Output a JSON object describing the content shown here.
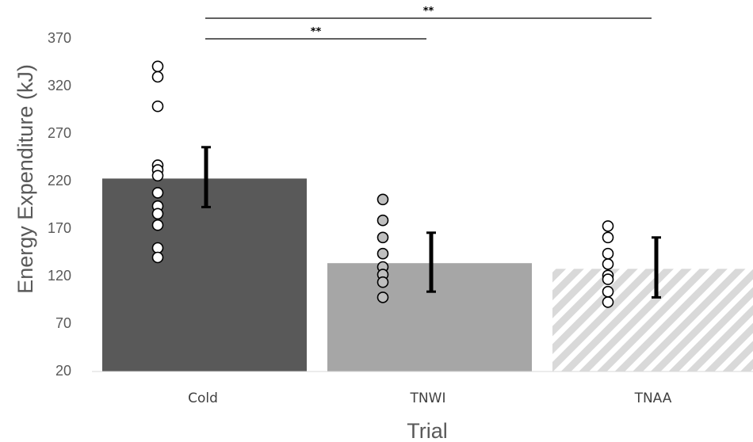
{
  "chart_data": {
    "type": "bar",
    "title": "",
    "xlabel": "Trial",
    "ylabel": "Energy Expenditure  (kJ)",
    "ylim": [
      20,
      370
    ],
    "yticks": [
      20,
      70,
      120,
      170,
      220,
      270,
      320,
      370
    ],
    "categories": [
      "Cold",
      "TNWI",
      "TNAA"
    ],
    "values": [
      223,
      134,
      128
    ],
    "error_low": [
      193,
      104,
      98
    ],
    "error_high": [
      256,
      166,
      161
    ],
    "bar_styles": [
      {
        "fill": "#595959",
        "pattern": "solid"
      },
      {
        "fill": "#a6a6a6",
        "pattern": "solid"
      },
      {
        "fill": "#d9d9d9",
        "pattern": "diagonal-hatch"
      }
    ],
    "point_fill": [
      "#ffffff",
      "#bfbfbf",
      "#ffffff"
    ],
    "individual_points": [
      [
        341,
        330,
        299,
        237,
        232,
        226,
        208,
        194,
        186,
        174,
        150,
        140
      ],
      [
        201,
        179,
        161,
        144,
        130,
        122,
        114,
        98
      ],
      [
        173,
        161,
        144,
        133,
        121,
        117,
        104,
        93
      ]
    ],
    "significance": [
      {
        "from": "Cold",
        "to": "TNWI",
        "label": "**"
      },
      {
        "from": "Cold",
        "to": "TNAA",
        "label": "**"
      }
    ],
    "grid": false,
    "legend": "none"
  }
}
